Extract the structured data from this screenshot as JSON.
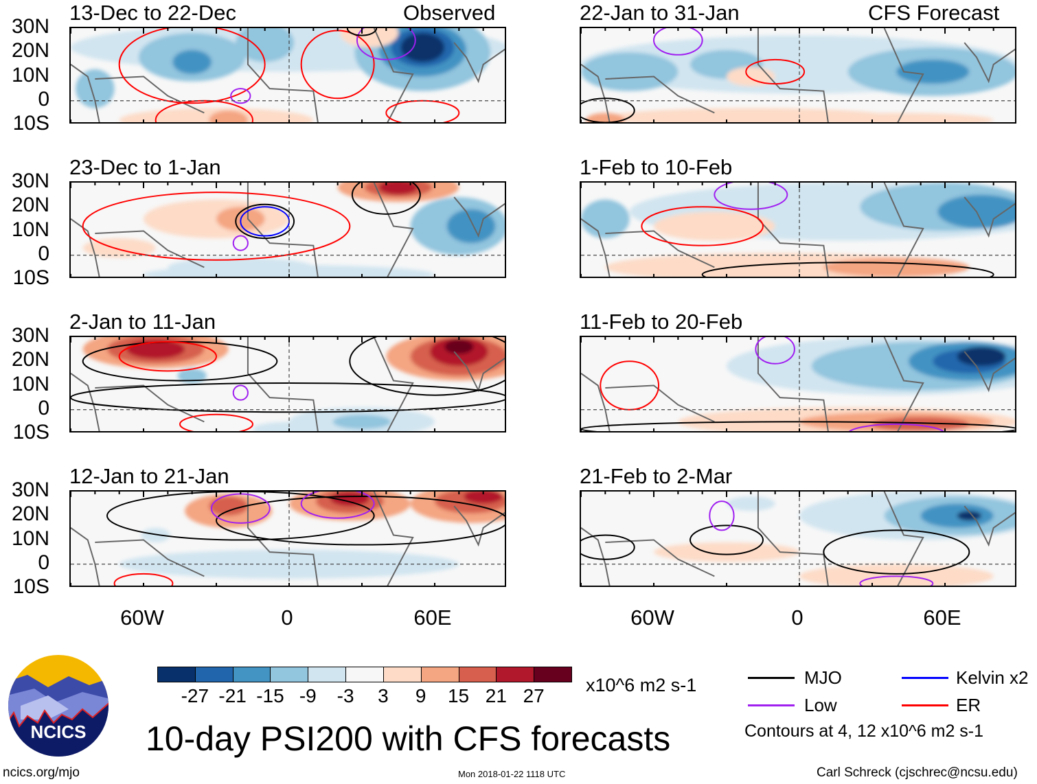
{
  "figure": {
    "title": "10-day PSI200 with CFS forecasts",
    "left_column_label": "Observed",
    "right_column_label": "CFS Forecast",
    "lat_labels": [
      "30N",
      "20N",
      "10N",
      "0",
      "10S"
    ],
    "lon_labels": [
      "60W",
      "0",
      "60E"
    ],
    "panels": [
      {
        "title": "13-Dec to 22-Dec",
        "type": "observed"
      },
      {
        "title": "23-Dec to 1-Jan",
        "type": "observed"
      },
      {
        "title": "2-Jan to 11-Jan",
        "type": "observed"
      },
      {
        "title": "12-Jan to 21-Jan",
        "type": "observed"
      },
      {
        "title": "22-Jan to 31-Jan",
        "type": "forecast"
      },
      {
        "title": "1-Feb to 10-Feb",
        "type": "forecast"
      },
      {
        "title": "11-Feb to 20-Feb",
        "type": "forecast"
      },
      {
        "title": "21-Feb to 2-Mar",
        "type": "forecast"
      }
    ]
  },
  "colorbar": {
    "levels": [
      "-27",
      "-21",
      "-15",
      "-9",
      "-3",
      "3",
      "9",
      "15",
      "21",
      "27"
    ],
    "colors": [
      "#08306b",
      "#2166ac",
      "#4393c3",
      "#92c5de",
      "#d1e5f0",
      "#f7f7f7",
      "#fddbc7",
      "#f4a582",
      "#d6604d",
      "#b2182b",
      "#67001f"
    ],
    "units": "x10^6 m2 s-1"
  },
  "legend": {
    "items": [
      {
        "label": "MJO",
        "color": "#000000"
      },
      {
        "label": "Kelvin x2",
        "color": "#0000ff"
      },
      {
        "label": "Low",
        "color": "#a020f0"
      },
      {
        "label": "ER",
        "color": "#ff0000"
      }
    ],
    "contours_note": "Contours at 4, 12 x10^6 m2 s-1"
  },
  "footer": {
    "url": "ncics.org/mjo",
    "timestamp": "Mon 2018-01-22 1118 UTC",
    "author": "Carl Schreck (cjschrec@ncsu.edu)",
    "logo_text": "NCICS"
  }
}
